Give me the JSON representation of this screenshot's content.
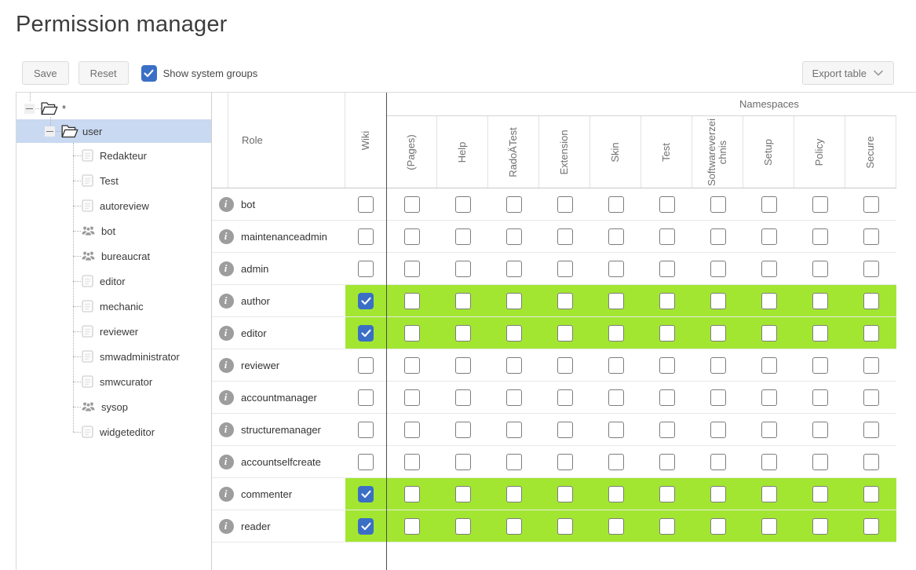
{
  "title": "Permission manager",
  "toolbar": {
    "save": "Save",
    "reset": "Reset",
    "show_system_groups": "Show system groups",
    "show_system_groups_checked": true,
    "export": "Export table"
  },
  "tree": {
    "root_label": "*",
    "selected_group": "user",
    "children": [
      {
        "label": "Redakteur",
        "icon": "page"
      },
      {
        "label": "Test",
        "icon": "page"
      },
      {
        "label": "autoreview",
        "icon": "page"
      },
      {
        "label": "bot",
        "icon": "group"
      },
      {
        "label": "bureaucrat",
        "icon": "group"
      },
      {
        "label": "editor",
        "icon": "page"
      },
      {
        "label": "mechanic",
        "icon": "page"
      },
      {
        "label": "reviewer",
        "icon": "page"
      },
      {
        "label": "smwadministrator",
        "icon": "page"
      },
      {
        "label": "smwcurator",
        "icon": "page"
      },
      {
        "label": "sysop",
        "icon": "group"
      },
      {
        "label": "widgeteditor",
        "icon": "page"
      }
    ]
  },
  "grid": {
    "role_header": "Role",
    "wiki_header": "Wiki",
    "namespaces_header": "Namespaces",
    "namespace_columns": [
      "(Pages)",
      "Help",
      "RadoÄTest",
      "Extension",
      "Skin",
      "Test",
      "Softwareverzeichnis",
      "Setup",
      "Policy",
      "Secure"
    ],
    "rows": [
      {
        "role": "bot",
        "highlighted": false,
        "wiki_checked": false,
        "namespaces": [
          false,
          false,
          false,
          false,
          false,
          false,
          false,
          false,
          false,
          false
        ]
      },
      {
        "role": "maintenanceadmin",
        "highlighted": false,
        "wiki_checked": false,
        "namespaces": [
          false,
          false,
          false,
          false,
          false,
          false,
          false,
          false,
          false,
          false
        ]
      },
      {
        "role": "admin",
        "highlighted": false,
        "wiki_checked": false,
        "namespaces": [
          false,
          false,
          false,
          false,
          false,
          false,
          false,
          false,
          false,
          false
        ]
      },
      {
        "role": "author",
        "highlighted": true,
        "wiki_checked": true,
        "namespaces": [
          false,
          false,
          false,
          false,
          false,
          false,
          false,
          false,
          false,
          false
        ]
      },
      {
        "role": "editor",
        "highlighted": true,
        "wiki_checked": true,
        "namespaces": [
          false,
          false,
          false,
          false,
          false,
          false,
          false,
          false,
          false,
          false
        ]
      },
      {
        "role": "reviewer",
        "highlighted": false,
        "wiki_checked": false,
        "namespaces": [
          false,
          false,
          false,
          false,
          false,
          false,
          false,
          false,
          false,
          false
        ]
      },
      {
        "role": "accountmanager",
        "highlighted": false,
        "wiki_checked": false,
        "namespaces": [
          false,
          false,
          false,
          false,
          false,
          false,
          false,
          false,
          false,
          false
        ]
      },
      {
        "role": "structuremanager",
        "highlighted": false,
        "wiki_checked": false,
        "namespaces": [
          false,
          false,
          false,
          false,
          false,
          false,
          false,
          false,
          false,
          false
        ]
      },
      {
        "role": "accountselfcreate",
        "highlighted": false,
        "wiki_checked": false,
        "namespaces": [
          false,
          false,
          false,
          false,
          false,
          false,
          false,
          false,
          false,
          false
        ]
      },
      {
        "role": "commenter",
        "highlighted": true,
        "wiki_checked": true,
        "namespaces": [
          false,
          false,
          false,
          false,
          false,
          false,
          false,
          false,
          false,
          false
        ]
      },
      {
        "role": "reader",
        "highlighted": true,
        "wiki_checked": true,
        "namespaces": [
          false,
          false,
          false,
          false,
          false,
          false,
          false,
          false,
          false,
          false
        ]
      }
    ]
  },
  "colors": {
    "accent_blue": "#3b6fc6",
    "highlight_green": "#a2e631",
    "tree_selection": "#c9d9f1"
  },
  "icons": {
    "info_glyph": "i"
  }
}
